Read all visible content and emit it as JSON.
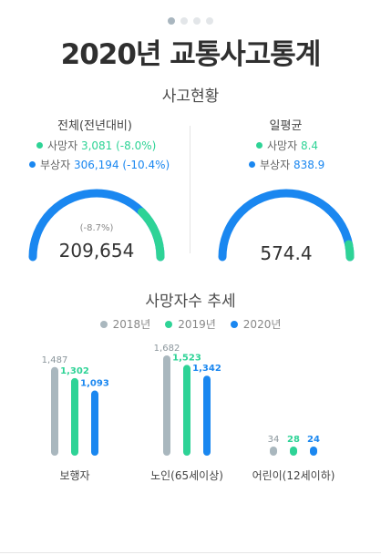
{
  "pagination": {
    "count": 4,
    "active": 0
  },
  "header": {
    "title": "2020년 교통사고통계"
  },
  "accident_status": {
    "title": "사고현황",
    "total": {
      "heading": "전체(전년대비)",
      "deaths_label": "사망자",
      "deaths_value": "3,081 (-8.0%)",
      "injured_label": "부상자",
      "injured_value": "306,194 (-10.4%)",
      "gauge_change": "(-8.7%)",
      "gauge_value": "209,654"
    },
    "daily": {
      "heading": "일평균",
      "deaths_label": "사망자",
      "deaths_value": "8.4",
      "injured_label": "부상자",
      "injured_value": "838.9",
      "gauge_value": "574.4"
    }
  },
  "colors": {
    "gray": "#a9b7be",
    "green": "#2ed396",
    "blue": "#1a87f0"
  },
  "chart_data": {
    "type": "bar",
    "title": "사망자수 추세",
    "categories": [
      "보행자",
      "노인(65세이상)",
      "어린이(12세이하)"
    ],
    "series": [
      {
        "name": "2018년",
        "values": [
          1487,
          1682,
          34
        ],
        "labels": [
          "1,487",
          "1,682",
          "34"
        ]
      },
      {
        "name": "2019년",
        "values": [
          1302,
          1523,
          28
        ],
        "labels": [
          "1,302",
          "1,523",
          "28"
        ]
      },
      {
        "name": "2020년",
        "values": [
          1093,
          1342,
          24
        ],
        "labels": [
          "1,093",
          "1,342",
          "24"
        ]
      }
    ],
    "legend_position": "top-center"
  }
}
